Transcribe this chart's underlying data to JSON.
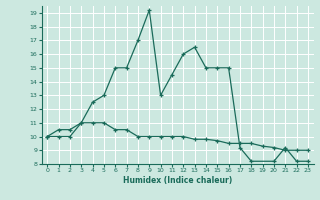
{
  "xlabel": "Humidex (Indice chaleur)",
  "ylabel": "",
  "bg_color": "#cce8e0",
  "grid_color": "#ffffff",
  "line_color": "#1a6b5a",
  "xlim": [
    -0.5,
    23.5
  ],
  "ylim": [
    8,
    19.5
  ],
  "yticks": [
    8,
    9,
    10,
    11,
    12,
    13,
    14,
    15,
    16,
    17,
    18,
    19
  ],
  "xticks": [
    0,
    1,
    2,
    3,
    4,
    5,
    6,
    7,
    8,
    9,
    10,
    11,
    12,
    13,
    14,
    15,
    16,
    17,
    18,
    19,
    20,
    21,
    22,
    23
  ],
  "line1_x": [
    0,
    1,
    2,
    3,
    4,
    5,
    6,
    7,
    8,
    9,
    10,
    11,
    12,
    13,
    14,
    15,
    16,
    17,
    18,
    20,
    21,
    22,
    23
  ],
  "line1_y": [
    10,
    10.5,
    10.5,
    11,
    12.5,
    13,
    15,
    15,
    17,
    19.2,
    13,
    14.5,
    16,
    16.5,
    15,
    15,
    15,
    9.2,
    8.2,
    8.2,
    9.2,
    8.2,
    8.2
  ],
  "line2_x": [
    0,
    1,
    2,
    3,
    4,
    5,
    6,
    7,
    8,
    9,
    10,
    11,
    12,
    13,
    14,
    15,
    16,
    17,
    18,
    19,
    20,
    21,
    22,
    23
  ],
  "line2_y": [
    10,
    10,
    10,
    11,
    11,
    11,
    10.5,
    10.5,
    10,
    10,
    10,
    10,
    10,
    9.8,
    9.8,
    9.7,
    9.5,
    9.5,
    9.5,
    9.3,
    9.2,
    9.0,
    9.0,
    9.0
  ]
}
